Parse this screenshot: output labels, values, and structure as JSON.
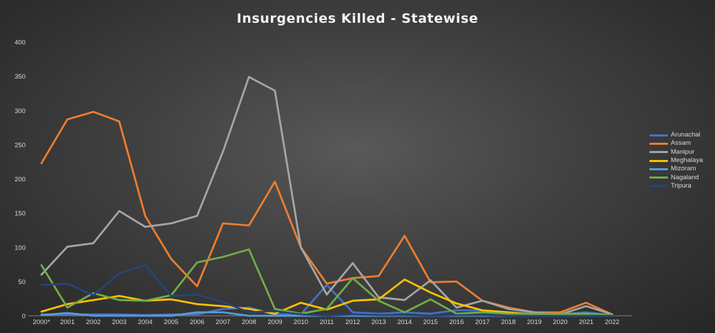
{
  "chart_data": {
    "type": "line",
    "title": "Insurgencies Killed - Statewise",
    "xlabel": "",
    "ylabel": "",
    "ylim": [
      0,
      400
    ],
    "yticks": [
      0,
      50,
      100,
      150,
      200,
      250,
      300,
      350,
      400
    ],
    "grid": false,
    "legend_position": "right",
    "categories": [
      "2000*",
      "2001",
      "2002",
      "2003",
      "2004",
      "2005",
      "2006",
      "2007",
      "2008",
      "2009",
      "2010",
      "2011",
      "2012",
      "2013",
      "2014",
      "2015",
      "2016",
      "2017",
      "2018",
      "2019",
      "2020",
      "2021",
      "2022"
    ],
    "series": [
      {
        "name": "Arunachal",
        "color": "#4472c4",
        "values": [
          2,
          2,
          2,
          2,
          1,
          2,
          2,
          10,
          12,
          2,
          2,
          45,
          5,
          3,
          5,
          3,
          8,
          8,
          5,
          3,
          2,
          5,
          1
        ]
      },
      {
        "name": "Assam",
        "color": "#ed7d31",
        "values": [
          223,
          287,
          298,
          284,
          146,
          83,
          43,
          135,
          132,
          196,
          100,
          47,
          55,
          58,
          117,
          49,
          50,
          22,
          12,
          5,
          5,
          19,
          2
        ]
      },
      {
        "name": "Manipur",
        "color": "#a5a5a5",
        "values": [
          60,
          101,
          106,
          153,
          130,
          135,
          146,
          240,
          349,
          329,
          100,
          31,
          77,
          27,
          23,
          52,
          12,
          22,
          10,
          5,
          2,
          14,
          2
        ]
      },
      {
        "name": "Meghalaya",
        "color": "#ffc000",
        "values": [
          6,
          17,
          23,
          29,
          22,
          24,
          17,
          14,
          10,
          3,
          19,
          9,
          22,
          24,
          53,
          34,
          18,
          8,
          5,
          2,
          1,
          3,
          1
        ]
      },
      {
        "name": "Mizoram",
        "color": "#5b9bd5",
        "values": [
          1,
          4,
          0,
          0,
          0,
          0,
          5,
          5,
          0,
          0,
          0,
          0,
          0,
          0,
          0,
          0,
          0,
          0,
          0,
          0,
          0,
          0,
          0
        ]
      },
      {
        "name": "Nagaland",
        "color": "#70ad47",
        "values": [
          74,
          12,
          33,
          23,
          22,
          30,
          78,
          86,
          97,
          10,
          3,
          10,
          55,
          22,
          5,
          24,
          3,
          5,
          3,
          3,
          3,
          3,
          1
        ]
      },
      {
        "name": "Tripura",
        "color": "#264478",
        "values": [
          45,
          47,
          30,
          62,
          74,
          29,
          31,
          20,
          5,
          7,
          2,
          0,
          2,
          1,
          1,
          0,
          1,
          1,
          0,
          0,
          0,
          0,
          0
        ]
      }
    ]
  }
}
